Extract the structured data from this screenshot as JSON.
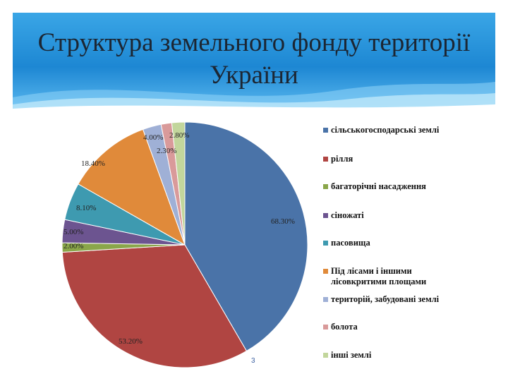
{
  "title": "Структура земельного фонду території України",
  "slide_number": "3",
  "chart_data": {
    "type": "pie",
    "title": "Структура земельного фонду території України",
    "start_angle_deg": 0,
    "direction": "clockwise",
    "slices": [
      {
        "name": "сільськогосподарські землі",
        "value": 68.3,
        "label": "68.30%",
        "color": "#4a73a8"
      },
      {
        "name": "рілля",
        "value": 53.2,
        "label": "53.20%",
        "color": "#b04542"
      },
      {
        "name": "багаторічні насадження",
        "value": 2.0,
        "label": "2.00%",
        "color": "#8aa64a"
      },
      {
        "name": "сіножаті",
        "value": 5.0,
        "label": "5.00%",
        "color": "#6c5490"
      },
      {
        "name": "пасовища",
        "value": 8.1,
        "label": "8.10%",
        "color": "#3e9ab0"
      },
      {
        "name": "Під лісами і іншими лісовкритими площами",
        "value": 18.4,
        "label": "18.40%",
        "color": "#e08a3a"
      },
      {
        "name": "територій, забудовані землі",
        "value": 4.0,
        "label": "4.00%",
        "color": "#9fb0d6"
      },
      {
        "name": "болота",
        "value": 2.3,
        "label": "2.30%",
        "color": "#d99a9a"
      },
      {
        "name": "інші землі",
        "value": 2.8,
        "label": "2.80%",
        "color": "#c2d69c"
      }
    ],
    "legend": {
      "position": "right",
      "entries": [
        {
          "text": "сільськогосподарські землі",
          "color": "#4a73a8"
        },
        {
          "text": "рілля",
          "color": "#b04542"
        },
        {
          "text": "багаторічні насадження",
          "color": "#8aa64a"
        },
        {
          "text": "сіножаті",
          "color": "#6c5490"
        },
        {
          "text": "пасовища",
          "color": "#3e9ab0"
        },
        {
          "text": "Під лісами і іншими лісовкритими площами",
          "color": "#e08a3a"
        },
        {
          "text": "територій, забудовані землі",
          "color": "#9fb0d6"
        },
        {
          "text": "болота",
          "color": "#d99a9a"
        },
        {
          "text": "інші землі",
          "color": "#c2d69c"
        }
      ]
    }
  }
}
